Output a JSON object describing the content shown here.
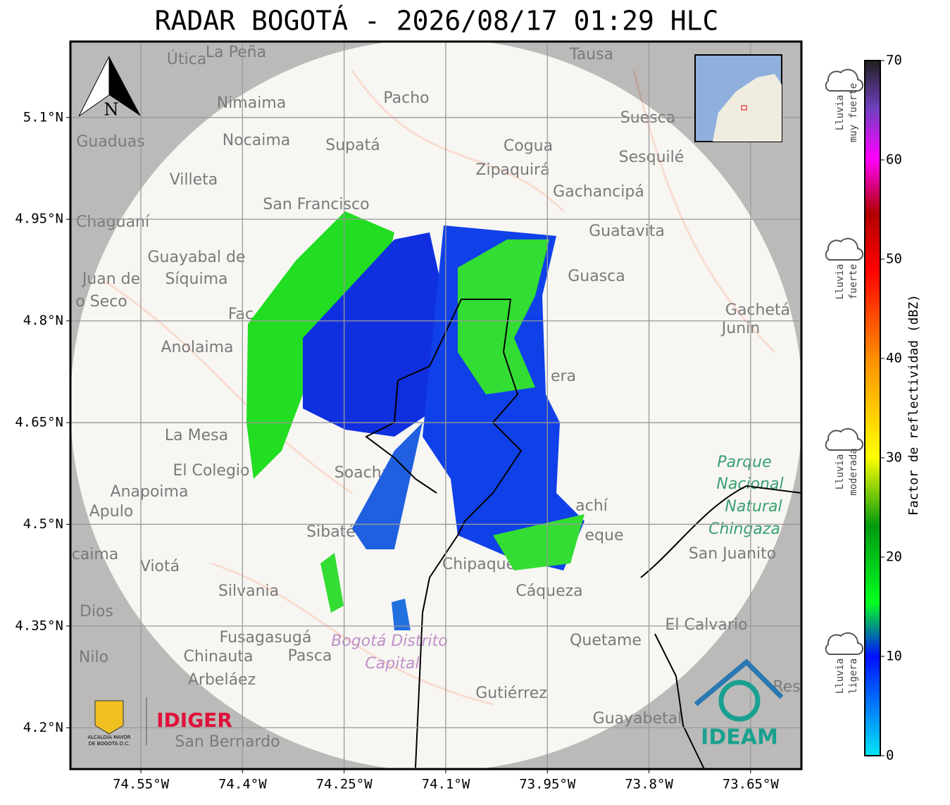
{
  "title": "RADAR BOGOTÁ - 2026/08/17 01:29 HLC",
  "map": {
    "xlim": [
      -74.654,
      -73.575
    ],
    "ylim": [
      4.139,
      5.212
    ],
    "xticks": [
      {
        "value": -74.55,
        "label": "74.55°W"
      },
      {
        "value": -74.4,
        "label": "74.4°W"
      },
      {
        "value": -74.25,
        "label": "74.25°W"
      },
      {
        "value": -74.1,
        "label": "74.1°W"
      },
      {
        "value": -73.95,
        "label": "73.95°W"
      },
      {
        "value": -73.8,
        "label": "73.8°W"
      },
      {
        "value": -73.65,
        "label": "73.65°W"
      }
    ],
    "yticks": [
      {
        "value": 5.1,
        "label": "5.1°N"
      },
      {
        "value": 4.95,
        "label": "4.95°N"
      },
      {
        "value": 4.8,
        "label": "4.8°N"
      },
      {
        "value": 4.65,
        "label": "4.65°N"
      },
      {
        "value": 4.5,
        "label": "4.5°N"
      },
      {
        "value": 4.35,
        "label": "4.35°N"
      },
      {
        "value": 4.2,
        "label": "4.2°N"
      }
    ],
    "places": [
      "Útica",
      "La Peña",
      "Tausa",
      "Nimaima",
      "Pacho",
      "Suesca",
      "Guaduas",
      "Nocaima",
      "Supatá",
      "Cogua",
      "Sesquilé",
      "Zipaquirá",
      "Villeta",
      "Gachancipá",
      "San Francisco",
      "Chaguaní",
      "Guatavita",
      "Guayabal de",
      "Síquima",
      "Guasca",
      "Juan de",
      "o Seco",
      "Gachetá",
      "Junín",
      "Anolaima",
      "Fac",
      "La Mesa",
      "El Colegio",
      "Soacha",
      "Anapoima",
      "Apulo",
      "Parque",
      "Nacional",
      "Natural",
      "Chingaza",
      "Sibaté",
      "San Juanito",
      "Chipaque",
      "caima",
      "Viotá",
      "Cáqueza",
      "Silvania",
      "El Calvario",
      "Dios",
      "Fusagasugá",
      "Bogotá Distrito",
      "Capital",
      "Quetame",
      "Nilo",
      "Chinauta",
      "Pasca",
      "Arbeláez",
      "Gutiérrez",
      "Guayabetal",
      "San Bernardo",
      "achí",
      "eque",
      "era",
      "Res"
    ]
  },
  "north": "N",
  "colorbar": {
    "label": "Factor de reflectividad (dBZ)",
    "lim": [
      0,
      70
    ],
    "ticks": [
      0,
      10,
      20,
      30,
      40,
      50,
      60,
      70
    ]
  },
  "legend": [
    [
      "Lluvia",
      "muy fuerte"
    ],
    [
      "Lluvia",
      "fuerte"
    ],
    [
      "Lluvia",
      "moderada"
    ],
    [
      "Lluvia",
      "ligera"
    ]
  ],
  "logos": {
    "idiger": "IDIGER",
    "ideam": "IDEAM",
    "alcaldia": [
      "ALCALDÍA MAYOR",
      "DE BOGOTÁ D.C."
    ]
  }
}
